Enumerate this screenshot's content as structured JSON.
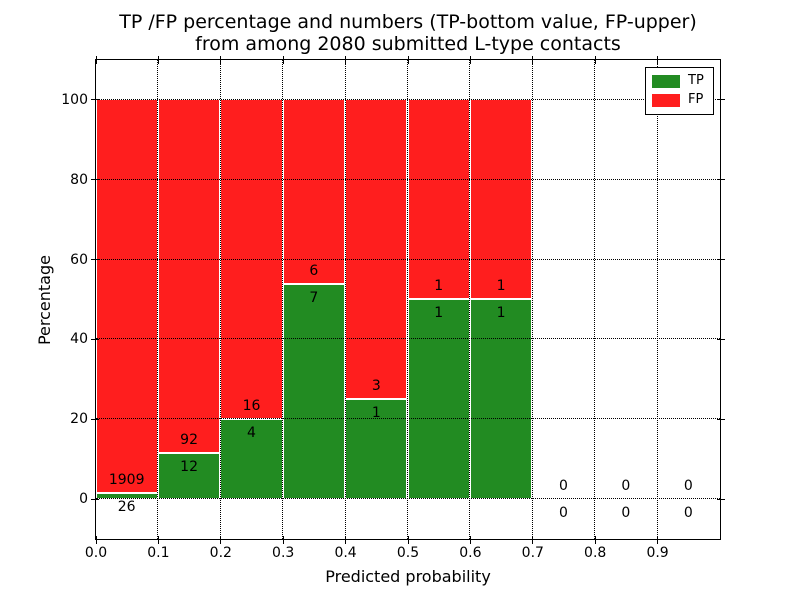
{
  "title_line1": "TP /FP percentage and numbers (TP-bottom value, FP-upper)",
  "title_line2": "from among 2080 submitted L-type contacts",
  "chart_data": {
    "type": "bar",
    "variant": "stacked-percentage-histogram",
    "title": "TP /FP percentage and numbers (TP-bottom value, FP-upper)\nfrom among 2080 submitted L-type contacts",
    "xlabel": "Predicted probability",
    "ylabel": "Percentage",
    "total_contacts": 2080,
    "bin_edges": [
      0.0,
      0.1,
      0.2,
      0.3,
      0.4,
      0.5,
      0.6,
      0.7,
      0.8,
      0.9,
      1.0
    ],
    "series": [
      {
        "name": "TP",
        "color": "#228B22",
        "counts": [
          26,
          12,
          4,
          7,
          1,
          1,
          1,
          0,
          0,
          0
        ]
      },
      {
        "name": "FP",
        "color": "#FF1E1E",
        "counts": [
          1909,
          92,
          16,
          6,
          3,
          1,
          1,
          0,
          0,
          0
        ]
      }
    ],
    "tp_percent_by_bin": [
      1.34,
      11.54,
      20.0,
      53.85,
      25.0,
      50.0,
      50.0,
      null,
      null,
      null
    ],
    "xticks": [
      "0.0",
      "0.1",
      "0.2",
      "0.3",
      "0.4",
      "0.5",
      "0.6",
      "0.7",
      "0.8",
      "0.9"
    ],
    "yticks": [
      0,
      20,
      40,
      60,
      80,
      100
    ],
    "xlim": [
      0.0,
      1.0
    ],
    "ylim": [
      -10,
      110
    ],
    "grid": "dotted",
    "bar_edge_color": "#ffffff",
    "legend": {
      "position": "upper right",
      "entries": [
        {
          "label": "TP",
          "color": "#228B22"
        },
        {
          "label": "FP",
          "color": "#FF1E1E"
        }
      ]
    }
  }
}
